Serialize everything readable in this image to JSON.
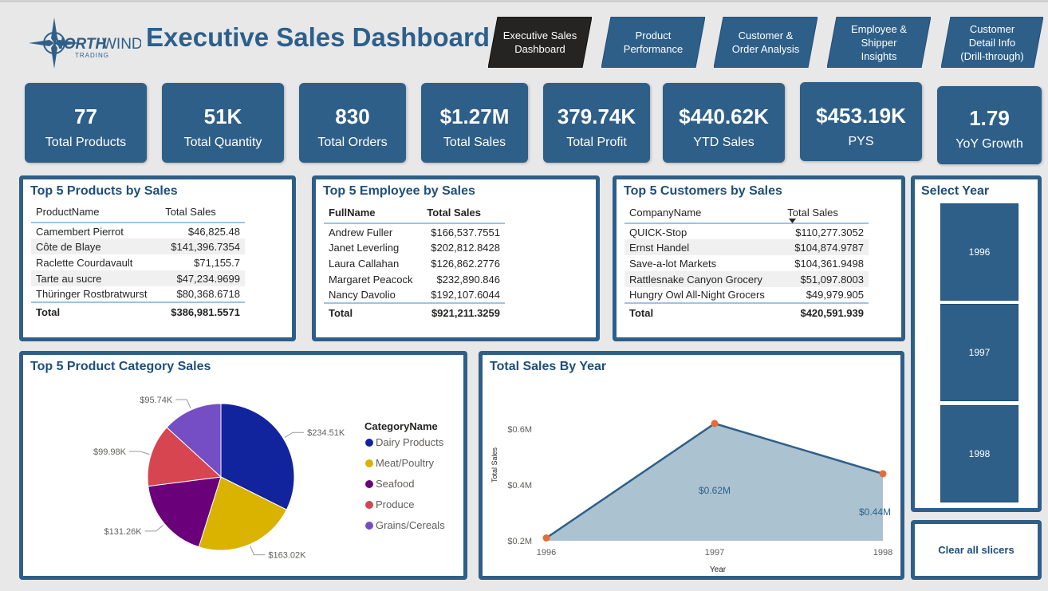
{
  "header": {
    "title": "Executive Sales Dashboard",
    "logo_main": "NORTH",
    "logo_main2": "WIND",
    "logo_sub": "TRADING"
  },
  "nav": [
    {
      "label": "Executive Sales\nDashboard",
      "active": true
    },
    {
      "label": "Product\nPerformance",
      "active": false
    },
    {
      "label": "Customer &\nOrder Analysis",
      "active": false
    },
    {
      "label": "Employee &\nShipper\nInsights",
      "active": false
    },
    {
      "label": "Customer\nDetail Info\n(Drill-through)",
      "active": false
    }
  ],
  "kpis": [
    {
      "value": "77",
      "label": "Total Products"
    },
    {
      "value": "51K",
      "label": "Total Quantity"
    },
    {
      "value": "830",
      "label": "Total Orders"
    },
    {
      "value": "$1.27M",
      "label": "Total Sales"
    },
    {
      "value": "379.74K",
      "label": "Total Profit"
    },
    {
      "value": "$440.62K",
      "label": "YTD Sales"
    },
    {
      "value": "$453.19K",
      "label": "PYS"
    },
    {
      "value": "1.79",
      "label": "YoY Growth"
    }
  ],
  "products": {
    "title": "Top 5 Products by Sales",
    "col1": "ProductName",
    "col2": "Total Sales",
    "rows": [
      {
        "name": "Camembert Pierrot",
        "sales": "$46,825.48"
      },
      {
        "name": "Côte de Blaye",
        "sales": "$141,396.7354"
      },
      {
        "name": "Raclette Courdavault",
        "sales": "$71,155.7"
      },
      {
        "name": "Tarte au sucre",
        "sales": "$47,234.9699"
      },
      {
        "name": "Thüringer Rostbratwurst",
        "sales": "$80,368.6718"
      }
    ],
    "total_label": "Total",
    "total_value": "$386,981.5571"
  },
  "employees": {
    "title": "Top 5 Employee by Sales",
    "col1": "FullName",
    "col2": "Total Sales",
    "rows": [
      {
        "name": "Andrew Fuller",
        "sales": "$166,537.7551"
      },
      {
        "name": "Janet Leverling",
        "sales": "$202,812.8428"
      },
      {
        "name": "Laura Callahan",
        "sales": "$126,862.2776"
      },
      {
        "name": "Margaret Peacock",
        "sales": "$232,890.846"
      },
      {
        "name": "Nancy Davolio",
        "sales": "$192,107.6044"
      }
    ],
    "total_label": "Total",
    "total_value": "$921,211.3259"
  },
  "customers": {
    "title": "Top 5 Customers by Sales",
    "col1": "CompanyName",
    "col2": "Total Sales",
    "sort_icon": "sort-desc-icon",
    "rows": [
      {
        "name": "QUICK-Stop",
        "sales": "$110,277.3052"
      },
      {
        "name": "Ernst Handel",
        "sales": "$104,874.9787"
      },
      {
        "name": "Save-a-lot Markets",
        "sales": "$104,361.9498"
      },
      {
        "name": "Rattlesnake Canyon Grocery",
        "sales": "$51,097.8003"
      },
      {
        "name": "Hungry Owl All-Night Grocers",
        "sales": "$49,979.905"
      }
    ],
    "total_label": "Total",
    "total_value": "$420,591.939"
  },
  "year_slicer": {
    "title": "Select Year",
    "years": [
      "1996",
      "1997",
      "1998"
    ]
  },
  "clear_slicers": "Clear all slicers",
  "colors": {
    "accent": "#2e5f89",
    "title_blue": "#2d5f8b",
    "active_nav": "#252423"
  },
  "chart_data": [
    {
      "type": "pie",
      "title": "Top 5 Product Category Sales",
      "legend_title": "CategoryName",
      "legend_position": "right",
      "slices": [
        {
          "name": "Dairy Products",
          "value": 234.51,
          "label": "$234.51K",
          "color": "#12239e"
        },
        {
          "name": "Meat/Poultry",
          "value": 163.02,
          "label": "$163.02K",
          "color": "#d9b300"
        },
        {
          "name": "Seafood",
          "value": 131.26,
          "label": "$131.26K",
          "color": "#6b007b"
        },
        {
          "name": "Produce",
          "value": 99.98,
          "label": "$99.98K",
          "color": "#d64550"
        },
        {
          "name": "Grains/Cereals",
          "value": 95.74,
          "label": "$95.74K",
          "color": "#744ec2"
        }
      ]
    },
    {
      "type": "area",
      "title": "Total Sales By Year",
      "xlabel": "Year",
      "ylabel": "Total Sales",
      "x": [
        "1996",
        "1997",
        "1998"
      ],
      "y": [
        0.21,
        0.62,
        0.44
      ],
      "point_labels": [
        "",
        "$0.62M",
        "$0.44M"
      ],
      "yticks": [
        0.2,
        0.4,
        0.6
      ],
      "ytick_labels": [
        "$0.2M",
        "$0.4M",
        "$0.6M"
      ],
      "ylim": [
        0.2,
        0.66
      ],
      "grid": false,
      "fill_color": "#a7bfcf",
      "line_color": "#2e5f89",
      "marker_color": "#e66c37"
    }
  ]
}
